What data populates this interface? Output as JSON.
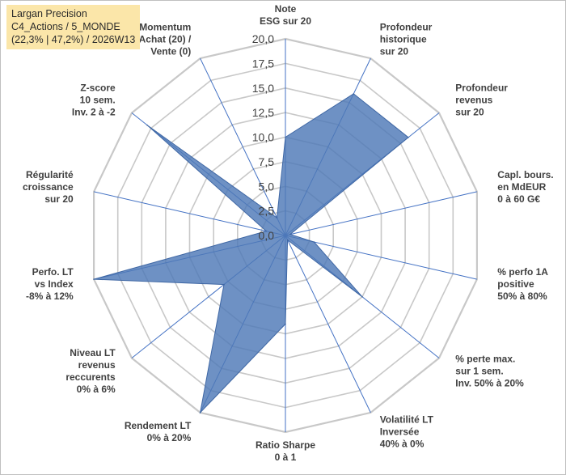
{
  "header": {
    "lines": [
      "Largan Precision",
      "C4_Actions / 5_MONDE",
      "(22,3% | 47,2%) / 2026W13"
    ]
  },
  "colors": {
    "fill": "#4e79b7",
    "stroke": "#3f67a4",
    "grid": "#c8c8c8",
    "spoke": "#4472c4",
    "header_bg": "#fbe6a9"
  },
  "chart_data": {
    "type": "radar",
    "rmin": 0,
    "rmax": 20,
    "step": 2.5,
    "tick_labels": [
      "0,0",
      "2,5",
      "5,0",
      "7,5",
      "10,0",
      "12,5",
      "15,0",
      "17,5",
      "20,0"
    ],
    "grid": true,
    "legend": "none",
    "axes": [
      {
        "label": [
          "Note",
          "ESG sur 20"
        ],
        "value": 10
      },
      {
        "label": [
          "Profondeur",
          "historique",
          "sur 20"
        ],
        "value": 16
      },
      {
        "label": [
          "Profondeur",
          "revenus",
          "sur 20"
        ],
        "value": 16
      },
      {
        "label": [
          "Capl. bours.",
          "en MdEUR",
          "0 à 60 G€"
        ],
        "value": 0.5
      },
      {
        "label": [
          "% perfo 1A",
          "positive",
          "50% à 80%"
        ],
        "value": 3
      },
      {
        "label": [
          "% perte max.",
          "sur 1 sem.",
          "Inv. 50% à 20%"
        ],
        "value": 10
      },
      {
        "label": [
          "Volatilité LT",
          "Inversée",
          "40% à 0%"
        ],
        "value": 0.5
      },
      {
        "label": [
          "Ratio Sharpe",
          "0 à 1"
        ],
        "value": 9
      },
      {
        "label": [
          "Rendement LT",
          "0% à 20%"
        ],
        "value": 20
      },
      {
        "label": [
          "Niveau LT",
          "revenus",
          "reccurents",
          "0% à 6%"
        ],
        "value": 8
      },
      {
        "label": [
          "Perfo. LT",
          "vs Index",
          "-8% à 12%"
        ],
        "value": 20
      },
      {
        "label": [
          "Régularité",
          "croissance",
          "sur 20"
        ],
        "value": 2
      },
      {
        "label": [
          "Z-score",
          "10 sem.",
          "Inv. 2 à -2"
        ],
        "value": 18
      },
      {
        "label": [
          "Momentum",
          "Achat (20) /",
          "Vente (0)"
        ],
        "value": 2
      }
    ]
  }
}
